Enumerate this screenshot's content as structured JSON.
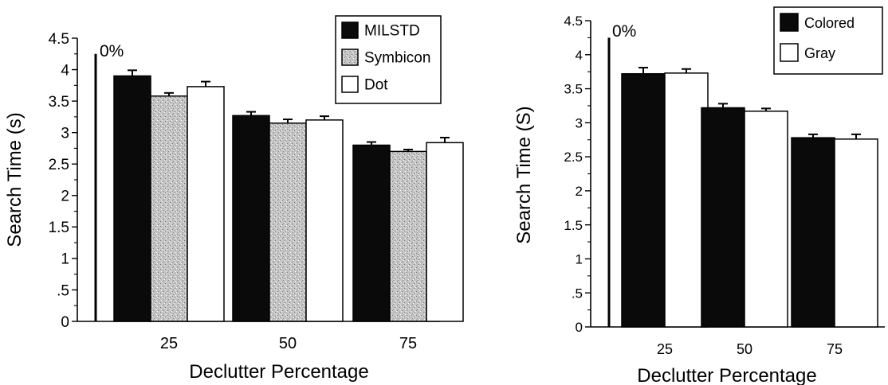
{
  "colors": {
    "black": "#0a0a0a",
    "speckle": "#b0b0b0",
    "white": "#ffffff"
  },
  "chart_data": [
    {
      "type": "bar",
      "xlabel": "Declutter Percentage",
      "ylabel": "Search Time (s)",
      "ylim": [
        0,
        4.5
      ],
      "yticks": [
        "0",
        ".5",
        "1",
        "1.5",
        "2",
        "2.5",
        "3",
        "3.5",
        "4",
        "4.5"
      ],
      "categories": [
        "25",
        "50",
        "75"
      ],
      "baseline_label": "0%",
      "baseline_value": 4.25,
      "legend_position": "top-right",
      "series": [
        {
          "name": "MILSTD",
          "fill": "black",
          "values": [
            3.9,
            3.27,
            2.8
          ],
          "errors": [
            0.09,
            0.06,
            0.05
          ]
        },
        {
          "name": "Symbicon",
          "fill": "speckle",
          "values": [
            3.58,
            3.15,
            2.7
          ],
          "errors": [
            0.05,
            0.06,
            0.03
          ]
        },
        {
          "name": "Dot",
          "fill": "white",
          "values": [
            3.73,
            3.2,
            2.84
          ],
          "errors": [
            0.08,
            0.06,
            0.08
          ]
        }
      ]
    },
    {
      "type": "bar",
      "xlabel": "Declutter Percentage",
      "ylabel": "Search Time (S)",
      "ylim": [
        0,
        4.5
      ],
      "yticks": [
        "0",
        ".5",
        "1",
        "1.5",
        "2",
        "2.5",
        "3",
        "3.5",
        "4",
        "4.5"
      ],
      "categories": [
        "25",
        "50",
        "75"
      ],
      "baseline_label": "0%",
      "baseline_value": 4.25,
      "legend_position": "top-right",
      "series": [
        {
          "name": "Colored",
          "fill": "black",
          "values": [
            3.72,
            3.22,
            2.78
          ],
          "errors": [
            0.09,
            0.06,
            0.05
          ]
        },
        {
          "name": "Gray",
          "fill": "white",
          "values": [
            3.73,
            3.17,
            2.76
          ],
          "errors": [
            0.06,
            0.04,
            0.07
          ]
        }
      ]
    }
  ]
}
